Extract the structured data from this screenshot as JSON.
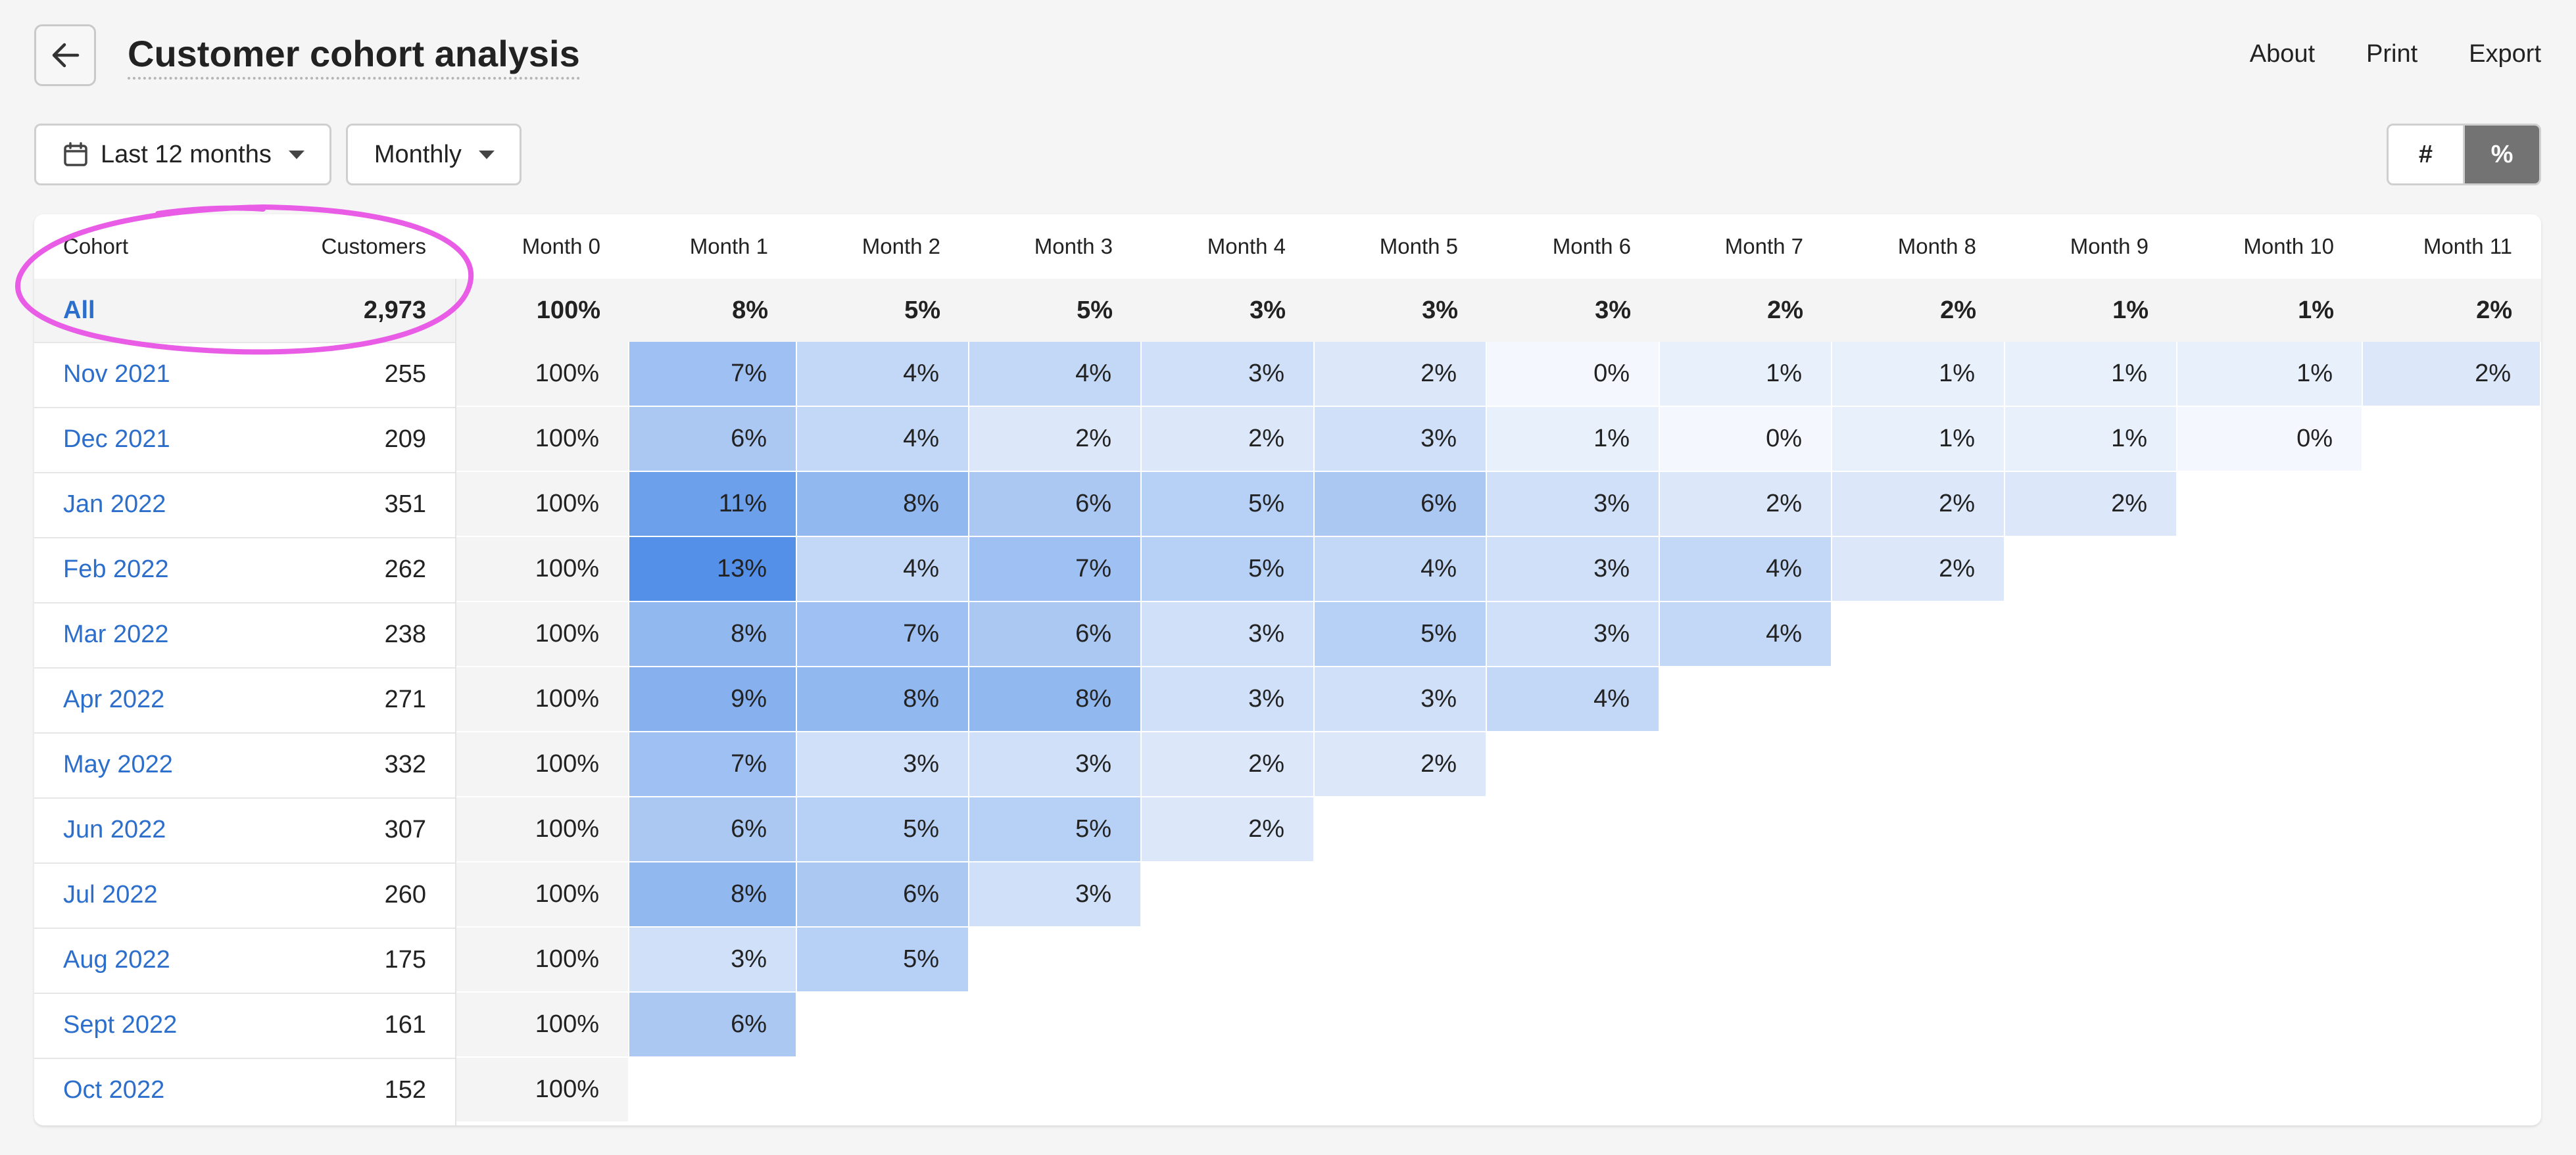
{
  "header": {
    "title": "Customer cohort analysis",
    "actions": [
      "About",
      "Print",
      "Export"
    ]
  },
  "filters": {
    "date_range": "Last 12 months",
    "interval": "Monthly"
  },
  "toggle": {
    "count_label": "#",
    "percent_label": "%",
    "selected": "%"
  },
  "colors": {
    "heat_base": "#4a8ae6",
    "link": "#2c6ecb",
    "annotation": "#e95de6"
  },
  "table": {
    "headers": {
      "cohort": "Cohort",
      "customers": "Customers"
    },
    "months": [
      "Month 0",
      "Month 1",
      "Month 2",
      "Month 3",
      "Month 4",
      "Month 5",
      "Month 6",
      "Month 7",
      "Month 8",
      "Month 9",
      "Month 10",
      "Month 11"
    ],
    "all_row": {
      "cohort": "All",
      "customers": "2,973",
      "values": [
        "100%",
        "8%",
        "5%",
        "5%",
        "3%",
        "3%",
        "3%",
        "2%",
        "2%",
        "1%",
        "1%",
        "2%"
      ]
    },
    "rows": [
      {
        "cohort": "Nov 2021",
        "customers": "255",
        "values": [
          "100%",
          "7%",
          "4%",
          "4%",
          "3%",
          "2%",
          "0%",
          "1%",
          "1%",
          "1%",
          "1%",
          "2%"
        ]
      },
      {
        "cohort": "Dec 2021",
        "customers": "209",
        "values": [
          "100%",
          "6%",
          "4%",
          "2%",
          "2%",
          "3%",
          "1%",
          "0%",
          "1%",
          "1%",
          "0%"
        ]
      },
      {
        "cohort": "Jan 2022",
        "customers": "351",
        "values": [
          "100%",
          "11%",
          "8%",
          "6%",
          "5%",
          "6%",
          "3%",
          "2%",
          "2%",
          "2%"
        ]
      },
      {
        "cohort": "Feb 2022",
        "customers": "262",
        "values": [
          "100%",
          "13%",
          "4%",
          "7%",
          "5%",
          "4%",
          "3%",
          "4%",
          "2%"
        ]
      },
      {
        "cohort": "Mar 2022",
        "customers": "238",
        "values": [
          "100%",
          "8%",
          "7%",
          "6%",
          "3%",
          "5%",
          "3%",
          "4%"
        ]
      },
      {
        "cohort": "Apr 2022",
        "customers": "271",
        "values": [
          "100%",
          "9%",
          "8%",
          "8%",
          "3%",
          "3%",
          "4%"
        ]
      },
      {
        "cohort": "May 2022",
        "customers": "332",
        "values": [
          "100%",
          "7%",
          "3%",
          "3%",
          "2%",
          "2%"
        ]
      },
      {
        "cohort": "Jun 2022",
        "customers": "307",
        "values": [
          "100%",
          "6%",
          "5%",
          "5%",
          "2%"
        ]
      },
      {
        "cohort": "Jul 2022",
        "customers": "260",
        "values": [
          "100%",
          "8%",
          "6%",
          "3%"
        ]
      },
      {
        "cohort": "Aug 2022",
        "customers": "175",
        "values": [
          "100%",
          "3%",
          "5%"
        ]
      },
      {
        "cohort": "Sept 2022",
        "customers": "161",
        "values": [
          "100%",
          "6%"
        ]
      },
      {
        "cohort": "Oct 2022",
        "customers": "152",
        "values": [
          "100%"
        ]
      }
    ]
  }
}
